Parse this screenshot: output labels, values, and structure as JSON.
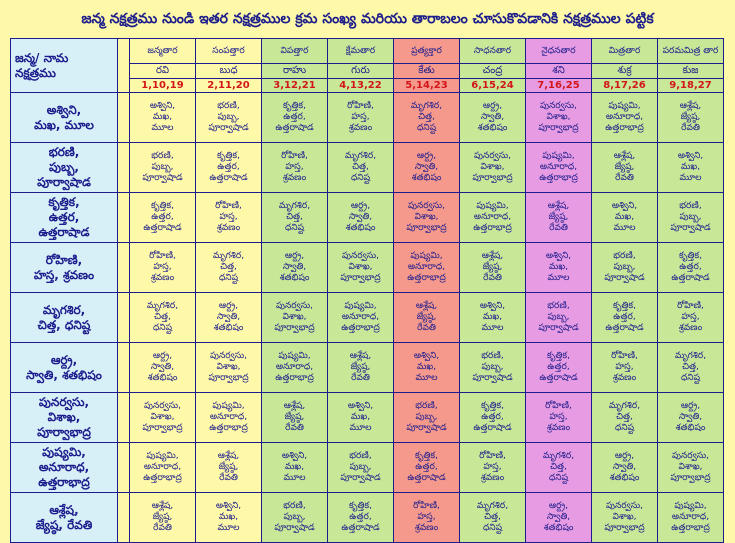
{
  "title": "జన్మ నక్షత్రము నుండి ఇతర నక్షత్రముల క్రమ సంఖ్య మరియు తారాబలం చూసుకొవడానికి నక్షత్రముల పట్టిక",
  "corner_label": [
    "జన్మ/ నామ",
    "నక్షత్రము"
  ],
  "colors": {
    "text": "#1c1c8c",
    "numbers": "#d2161a",
    "row_header": "#d7f0f8",
    "yellow": "#fdf9a8",
    "green": "#c8e898",
    "red": "#f5998d",
    "pink": "#e79be2"
  },
  "columns": [
    {
      "tara": "జన్మతార",
      "graha": "రవి",
      "nums": "1,10,19"
    },
    {
      "tara": "సంపత్తార",
      "graha": "బుధ",
      "nums": "2,11,20"
    },
    {
      "tara": "విపత్తార",
      "graha": "రాహు",
      "nums": "3,12,21"
    },
    {
      "tara": "క్షేమతార",
      "graha": "గురు",
      "nums": "4,13,22"
    },
    {
      "tara": "ప్రత్యక్తార",
      "graha": "కేతు",
      "nums": "5,14,23"
    },
    {
      "tara": "సాధనతార",
      "graha": "చంద్ర",
      "nums": "6,15,24"
    },
    {
      "tara": "నైధనతార",
      "graha": "శని",
      "nums": "7,16,25"
    },
    {
      "tara": "మిత్రతార",
      "graha": "శుక్ర",
      "nums": "8,17,26"
    },
    {
      "tara": "పరమమిత్ర తార",
      "graha": "కుజ",
      "nums": "9,18,27"
    }
  ],
  "rows": [
    {
      "header": [
        "అశ్విని,",
        "మఖ, మూల"
      ],
      "cells": [
        [
          "అశ్విని,",
          "మఖ,",
          "మూల"
        ],
        [
          "భరణి,",
          "పుబ్బ,",
          "పూర్వాషాడ"
        ],
        [
          "కృత్తిక,",
          "ఉత్తర,",
          "ఉత్తరాషాడ"
        ],
        [
          "రోహిణి,",
          "హస్త,",
          "శ్రవణం"
        ],
        [
          "మృగశిర,",
          "చిత్త,",
          "ధనిష్ట"
        ],
        [
          "ఆర్ద్ర,",
          "స్వాతి,",
          "శతభిషం"
        ],
        [
          "పునర్వసు,",
          "విశాఖ,",
          "పూర్వాభాద్ర"
        ],
        [
          "పుష్యమి,",
          "అనూరాధ,",
          "ఉత్తరాభాద్ర"
        ],
        [
          "ఆశ్లేష,",
          "జ్యేష్ఠ,",
          "రేవతి"
        ]
      ]
    },
    {
      "header": [
        "భరణి,",
        "పుబ్బ,",
        "పూర్వాషాడ"
      ],
      "cells": [
        [
          "భరణి,",
          "పుబ్బ,",
          "పూర్వాషాడ"
        ],
        [
          "కృత్తిక,",
          "ఉత్తర,",
          "ఉత్తరాషాడ"
        ],
        [
          "రోహిణి,",
          "హస్త,",
          "శ్రవణం"
        ],
        [
          "మృగశిర,",
          "చిత్త,",
          "ధనిష్ట"
        ],
        [
          "ఆర్ద్ర,",
          "స్వాతి,",
          "శతభిషం"
        ],
        [
          "పునర్వసు,",
          "విశాఖ,",
          "పూర్వాభాద్ర"
        ],
        [
          "పుష్యమి,",
          "అనూరాధ,",
          "ఉత్తరాభాద్ర"
        ],
        [
          "ఆశ్లేష,",
          "జ్యేష్ఠ,",
          "రేవతి"
        ],
        [
          "అశ్విని,",
          "మఖ,",
          "మూల"
        ]
      ]
    },
    {
      "header": [
        "కృత్తిక,",
        "ఉత్తర,",
        "ఉత్తరాషాడ"
      ],
      "cells": [
        [
          "కృత్తిక,",
          "ఉత్తర,",
          "ఉత్తరాషాడ"
        ],
        [
          "రోహిణి,",
          "హస్త,",
          "శ్రవణం"
        ],
        [
          "మృగశిర,",
          "చిత్త,",
          "ధనిష్ట"
        ],
        [
          "ఆర్ద్ర,",
          "స్వాతి,",
          "శతభిషం"
        ],
        [
          "పునర్వసు,",
          "విశాఖ,",
          "పూర్వాభాద్ర"
        ],
        [
          "పుష్యమి,",
          "అనూరాధ,",
          "ఉత్తరాభాద్ర"
        ],
        [
          "ఆశ్లేష,",
          "జ్యేష్ఠ,",
          "రేవతి"
        ],
        [
          "అశ్విని,",
          "మఖ,",
          "మూల"
        ],
        [
          "భరణి,",
          "పుబ్బ,",
          "పూర్వాషాడ"
        ]
      ]
    },
    {
      "header": [
        "రోహిణి,",
        "హస్త, శ్రవణం"
      ],
      "cells": [
        [
          "రోహిణి,",
          "హస్త,",
          "శ్రవణం"
        ],
        [
          "మృగశిర,",
          "చిత్త,",
          "ధనిష్ట"
        ],
        [
          "ఆర్ద్ర,",
          "స్వాతి,",
          "శతభిషం"
        ],
        [
          "పునర్వసు,",
          "విశాఖ,",
          "పూర్వాభాద్ర"
        ],
        [
          "పుష్యమి,",
          "అనూరాధ,",
          "ఉత్తరాభాద్ర"
        ],
        [
          "ఆశ్లేష,",
          "జ్యేష్ఠ,",
          "రేవతి"
        ],
        [
          "అశ్విని,",
          "మఖ,",
          "మూల"
        ],
        [
          "భరణి,",
          "పుబ్బ,",
          "పూర్వాషాడ"
        ],
        [
          "కృత్తిక,",
          "ఉత్తర,",
          "ఉత్తరాషాడ"
        ]
      ]
    },
    {
      "header": [
        "మృగశిర,",
        "చిత్త, ధనిష్ట"
      ],
      "cells": [
        [
          "మృగశిర,",
          "చిత్త,",
          "ధనిష్ట"
        ],
        [
          "ఆర్ద్ర,",
          "స్వాతి,",
          "శతభిషం"
        ],
        [
          "పునర్వసు,",
          "విశాఖ,",
          "పూర్వాభాద్ర"
        ],
        [
          "పుష్యమి,",
          "అనూరాధ,",
          "ఉత్తరాభాద్ర"
        ],
        [
          "ఆశ్లేష,",
          "జ్యేష్ఠ,",
          "రేవతి"
        ],
        [
          "అశ్విని,",
          "మఖ,",
          "మూల"
        ],
        [
          "భరణి,",
          "పుబ్బ,",
          "పూర్వాషాడ"
        ],
        [
          "కృత్తిక,",
          "ఉత్తర,",
          "ఉత్తరాషాడ"
        ],
        [
          "రోహిణి,",
          "హస్త,",
          "శ్రవణం"
        ]
      ]
    },
    {
      "header": [
        "ఆర్ద్ర,",
        "స్వాతి, శతభిషం"
      ],
      "cells": [
        [
          "ఆర్ద్ర,",
          "స్వాతి,",
          "శతభిషం"
        ],
        [
          "పునర్వసు,",
          "విశాఖ,",
          "పూర్వాభాద్ర"
        ],
        [
          "పుష్యమి,",
          "అనూరాధ,",
          "ఉత్తరాభాద్ర"
        ],
        [
          "ఆశ్లేష,",
          "జ్యేష్ఠ,",
          "రేవతి"
        ],
        [
          "అశ్విని,",
          "మఖ,",
          "మూల"
        ],
        [
          "భరణి,",
          "పుబ్బ,",
          "పూర్వాషాడ"
        ],
        [
          "కృత్తిక,",
          "ఉత్తర,",
          "ఉత్తరాషాడ"
        ],
        [
          "రోహిణి,",
          "హస్త,",
          "శ్రవణం"
        ],
        [
          "మృగశిర,",
          "చిత్త,",
          "ధనిష్ట"
        ]
      ]
    },
    {
      "header": [
        "పునర్వసు,",
        "విశాఖ,",
        "పూర్వాభాద్ర"
      ],
      "cells": [
        [
          "పునర్వసు,",
          "విశాఖ,",
          "పూర్వాభాద్ర"
        ],
        [
          "పుష్యమి,",
          "అనూరాధ,",
          "ఉత్తరాభాద్ర"
        ],
        [
          "ఆశ్లేష,",
          "జ్యేష్ఠ,",
          "రేవతి"
        ],
        [
          "అశ్విని,",
          "మఖ,",
          "మూల"
        ],
        [
          "భరణి,",
          "పుబ్బ,",
          "పూర్వాషాడ"
        ],
        [
          "కృత్తిక,",
          "ఉత్తర,",
          "ఉత్తరాషాడ"
        ],
        [
          "రోహిణి,",
          "హస్త,",
          "శ్రవణం"
        ],
        [
          "మృగశిర,",
          "చిత్త,",
          "ధనిష్ట"
        ],
        [
          "ఆర్ద్ర,",
          "స్వాతి,",
          "శతభిషం"
        ]
      ]
    },
    {
      "header": [
        "పుష్యమి,",
        "అనూరాధ,",
        "ఉత్తరాభాద్ర"
      ],
      "cells": [
        [
          "పుష్యమి,",
          "అనూరాధ,",
          "ఉత్తరాభాద్ర"
        ],
        [
          "ఆశ్లేష,",
          "జ్యేష్ఠ,",
          "రేవతి"
        ],
        [
          "అశ్విని,",
          "మఖ,",
          "మూల"
        ],
        [
          "భరణి,",
          "పుబ్బ,",
          "పూర్వాషాడ"
        ],
        [
          "కృత్తిక,",
          "ఉత్తర,",
          "ఉత్తరాషాడ"
        ],
        [
          "రోహిణి,",
          "హస్త,",
          "శ్రవణం"
        ],
        [
          "మృగశిర,",
          "చిత్త,",
          "ధనిష్ట"
        ],
        [
          "ఆర్ద్ర,",
          "స్వాతి,",
          "శతభిషం"
        ],
        [
          "పునర్వసు,",
          "విశాఖ,",
          "పూర్వాభాద్ర"
        ]
      ]
    },
    {
      "header": [
        "ఆశ్లేష,",
        "జ్యేష్ఠ, రేవతి"
      ],
      "cells": [
        [
          "ఆశ్లేష,",
          "జ్యేష్ఠ,",
          "రేవతి"
        ],
        [
          "అశ్విని,",
          "మఖ,",
          "మూల"
        ],
        [
          "భరణి,",
          "పుబ్బ,",
          "పూర్వాషాడ"
        ],
        [
          "కృత్తిక,",
          "ఉత్తర,",
          "ఉత్తరాషాడ"
        ],
        [
          "రోహిణి,",
          "హస్త,",
          "శ్రవణం"
        ],
        [
          "మృగశిర,",
          "చిత్త,",
          "ధనిష్ట"
        ],
        [
          "ఆర్ద్ర,",
          "స్వాతి,",
          "శతభిషం"
        ],
        [
          "పునర్వసు,",
          "విశాఖ,",
          "పూర్వాభాద్ర"
        ],
        [
          "పుష్యమి,",
          "అనూరాధ,",
          "ఉత్తరాభాద్ర"
        ]
      ]
    }
  ]
}
